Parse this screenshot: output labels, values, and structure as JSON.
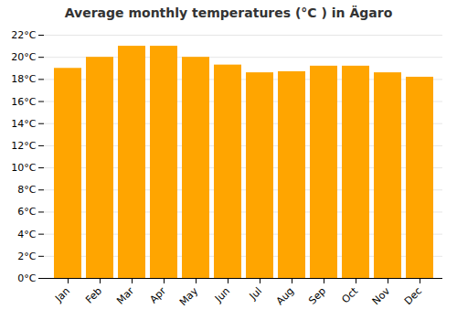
{
  "chart_data": {
    "type": "bar",
    "title": "Average monthly temperatures (°C ) in Ägaro",
    "categories": [
      "Jan",
      "Feb",
      "Mar",
      "Apr",
      "May",
      "Jun",
      "Jul",
      "Aug",
      "Sep",
      "Oct",
      "Nov",
      "Dec"
    ],
    "values": [
      19,
      20,
      21,
      21,
      20,
      19.3,
      18.6,
      18.7,
      19.2,
      19.2,
      18.6,
      18.2
    ],
    "color": "#FFA500",
    "ylim": [
      0,
      22
    ],
    "yticks": [
      {
        "value": 0,
        "label": "0°C"
      },
      {
        "value": 2,
        "label": "2°C"
      },
      {
        "value": 4,
        "label": "4°C"
      },
      {
        "value": 6,
        "label": "6°C"
      },
      {
        "value": 8,
        "label": "8°C"
      },
      {
        "value": 10,
        "label": "10°C"
      },
      {
        "value": 12,
        "label": "12°C"
      },
      {
        "value": 14,
        "label": "14°C"
      },
      {
        "value": 16,
        "label": "16°C"
      },
      {
        "value": 18,
        "label": "18°C"
      },
      {
        "value": 20,
        "label": "20°C"
      },
      {
        "value": 22,
        "label": "22°C"
      }
    ],
    "grid": true
  }
}
